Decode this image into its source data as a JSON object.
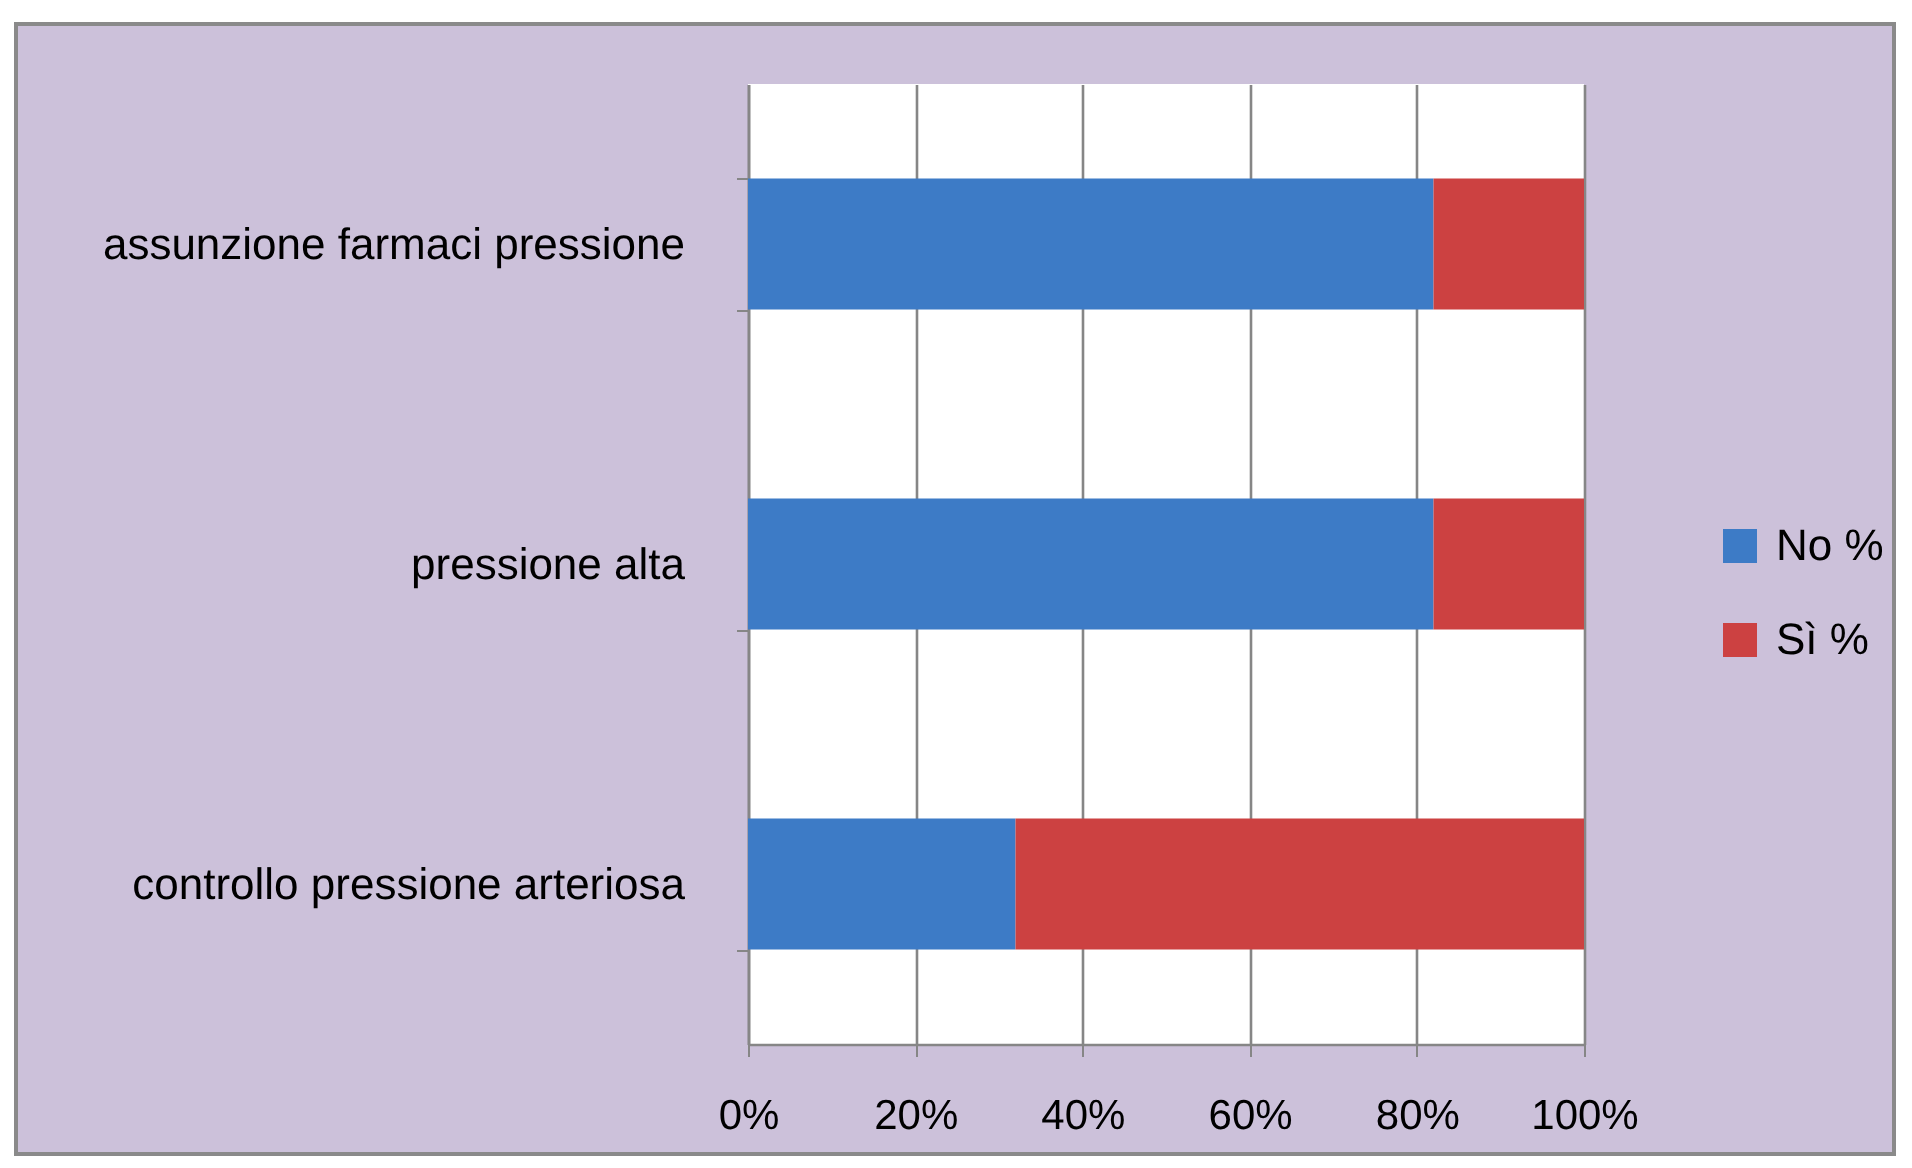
{
  "chart_data": {
    "type": "bar",
    "orientation": "horizontal",
    "stacked": true,
    "categories": [
      "assunzione farmaci pressione",
      "pressione alta",
      "controllo pressione arteriosa"
    ],
    "series": [
      {
        "name": "No %",
        "color": "#3d7bc6",
        "values": [
          82,
          82,
          32
        ]
      },
      {
        "name": "Sì %",
        "color": "#cc4141",
        "values": [
          18,
          18,
          68
        ]
      }
    ],
    "xlim": [
      0,
      100
    ],
    "xticks": [
      {
        "value": 0,
        "label": "0%"
      },
      {
        "value": 20,
        "label": "20%"
      },
      {
        "value": 40,
        "label": "40%"
      },
      {
        "value": 60,
        "label": "60%"
      },
      {
        "value": 80,
        "label": "80%"
      },
      {
        "value": 100,
        "label": "100%"
      }
    ],
    "grid": "x",
    "legend": "right"
  }
}
